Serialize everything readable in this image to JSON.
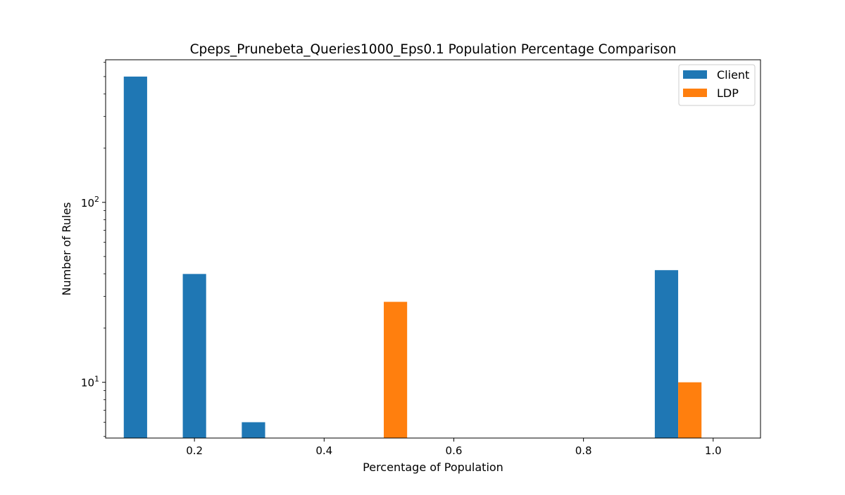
{
  "chart_data": {
    "type": "bar",
    "title": "Cpeps_Prunebeta_Queries1000_Eps0.1 Population Percentage Comparison",
    "xlabel": "Percentage of Population",
    "ylabel": "Number of Rules",
    "xlim": [
      0.063,
      1.073
    ],
    "ylim": [
      4.9,
      620
    ],
    "yscale": "log",
    "x_ticks": [
      {
        "value": 0.2,
        "label": "0.2"
      },
      {
        "value": 0.4,
        "label": "0.4"
      },
      {
        "value": 0.6,
        "label": "0.6"
      },
      {
        "value": 0.8,
        "label": "0.8"
      },
      {
        "value": 1.0,
        "label": "1.0"
      }
    ],
    "y_major_ticks": [
      {
        "value": 10,
        "base": "10",
        "exp": "1"
      },
      {
        "value": 100,
        "base": "10",
        "exp": "2"
      }
    ],
    "bar_width": 0.036,
    "series": [
      {
        "name": "Client",
        "color": "#1f77b4",
        "bars": [
          {
            "x": 0.109,
            "value": 500
          },
          {
            "x": 0.2,
            "value": 40
          },
          {
            "x": 0.291,
            "value": 6
          },
          {
            "x": 0.928,
            "value": 42
          }
        ]
      },
      {
        "name": "LDP",
        "color": "#ff7f0e",
        "bars": [
          {
            "x": 0.51,
            "value": 28
          },
          {
            "x": 0.964,
            "value": 10
          }
        ]
      }
    ],
    "grid": false,
    "legend_position": "top-right"
  }
}
